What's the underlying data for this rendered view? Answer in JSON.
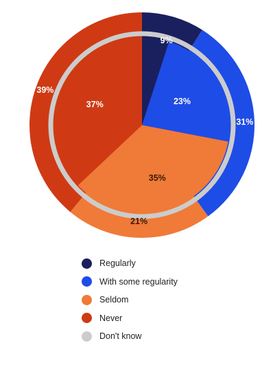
{
  "chart_data": {
    "type": "pie",
    "categories": [
      "Regularly",
      "With some regularity",
      "Seldom",
      "Never"
    ],
    "series": [
      {
        "ring": "outer",
        "values": [
          9,
          31,
          21,
          39
        ]
      },
      {
        "ring": "inner",
        "values": [
          5,
          23,
          35,
          37
        ]
      }
    ],
    "value_labels": {
      "outer": [
        "9%",
        "31%",
        "21%",
        "39%"
      ],
      "inner": [
        "",
        "23%",
        "35%",
        "37%"
      ]
    },
    "colors": [
      "#1a1f5e",
      "#1e4ce6",
      "#f07a38",
      "#cf3a14"
    ],
    "dont_know_color": "#cccccc",
    "legend": [
      {
        "label": "Regularly",
        "color": "#1a1f5e"
      },
      {
        "label": "With some regularity",
        "color": "#1e4ce6"
      },
      {
        "label": "Seldom",
        "color": "#f07a38"
      },
      {
        "label": "Never",
        "color": "#cf3a14"
      },
      {
        "label": "Don't know",
        "color": "#cccccc"
      }
    ],
    "legend_position": "bottom"
  }
}
